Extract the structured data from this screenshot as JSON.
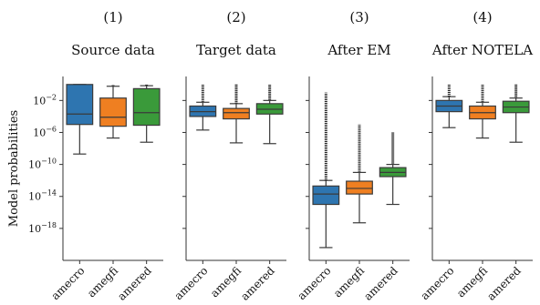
{
  "chart_data": {
    "type": "box",
    "ylabel": "Model probabilities",
    "yscale": "log",
    "ylim": [
      1e-22,
      10.0
    ],
    "yticks": [
      {
        "value": 0.01,
        "base": "10",
        "exp": "−2"
      },
      {
        "value": 1e-06,
        "base": "10",
        "exp": "−6"
      },
      {
        "value": 1e-10,
        "base": "10",
        "exp": "−10"
      },
      {
        "value": 1e-14,
        "base": "10",
        "exp": "−14"
      },
      {
        "value": 1e-18,
        "base": "10",
        "exp": "−18"
      }
    ],
    "categories": [
      "amecro",
      "amegfi",
      "amered"
    ],
    "colors": [
      "#2e75b0",
      "#ef7f21",
      "#3a9a3a"
    ],
    "panels": [
      {
        "number": "(1)",
        "title": "Source data",
        "boxes": [
          {
            "whislo": 2e-09,
            "q1": 1e-05,
            "median": 0.0002,
            "q3": 1.0,
            "whishi": 1.0,
            "fliers_to": null
          },
          {
            "whislo": 2e-07,
            "q1": 6e-06,
            "median": 8e-05,
            "q3": 0.02,
            "whishi": 0.6,
            "fliers_to": 1.0
          },
          {
            "whislo": 6e-08,
            "q1": 8e-06,
            "median": 0.0003,
            "q3": 0.3,
            "whishi": 0.7,
            "fliers_to": 1.0
          }
        ]
      },
      {
        "number": "(2)",
        "title": "Target data",
        "boxes": [
          {
            "whislo": 2e-06,
            "q1": 0.0001,
            "median": 0.0004,
            "q3": 0.002,
            "whishi": 0.006,
            "fliers_to": 1.0
          },
          {
            "whislo": 5e-08,
            "q1": 5e-05,
            "median": 0.0003,
            "q3": 0.001,
            "whishi": 0.004,
            "fliers_to": 1.0
          },
          {
            "whislo": 4e-08,
            "q1": 0.0002,
            "median": 0.0008,
            "q3": 0.004,
            "whishi": 0.01,
            "fliers_to": 1.0
          }
        ]
      },
      {
        "number": "(3)",
        "title": "After EM",
        "boxes": [
          {
            "whislo": 4e-21,
            "q1": 1e-15,
            "median": 2e-14,
            "q3": 2e-13,
            "whishi": 1e-12,
            "fliers_to": 0.1
          },
          {
            "whislo": 5e-18,
            "q1": 2e-14,
            "median": 1e-13,
            "q3": 8e-13,
            "whishi": 1e-11,
            "fliers_to": 1e-05
          },
          {
            "whislo": 1e-15,
            "q1": 3e-12,
            "median": 1e-11,
            "q3": 4e-11,
            "whishi": 1e-10,
            "fliers_to": 1e-06
          }
        ]
      },
      {
        "number": "(4)",
        "title": "After NOTELA",
        "boxes": [
          {
            "whislo": 4e-06,
            "q1": 0.0004,
            "median": 0.002,
            "q3": 0.01,
            "whishi": 0.03,
            "fliers_to": 1.0
          },
          {
            "whislo": 2e-07,
            "q1": 5e-05,
            "median": 0.0003,
            "q3": 0.002,
            "whishi": 0.006,
            "fliers_to": 1.0
          },
          {
            "whislo": 6e-08,
            "q1": 0.0003,
            "median": 0.0015,
            "q3": 0.008,
            "whishi": 0.02,
            "fliers_to": 1.0
          }
        ]
      }
    ]
  }
}
